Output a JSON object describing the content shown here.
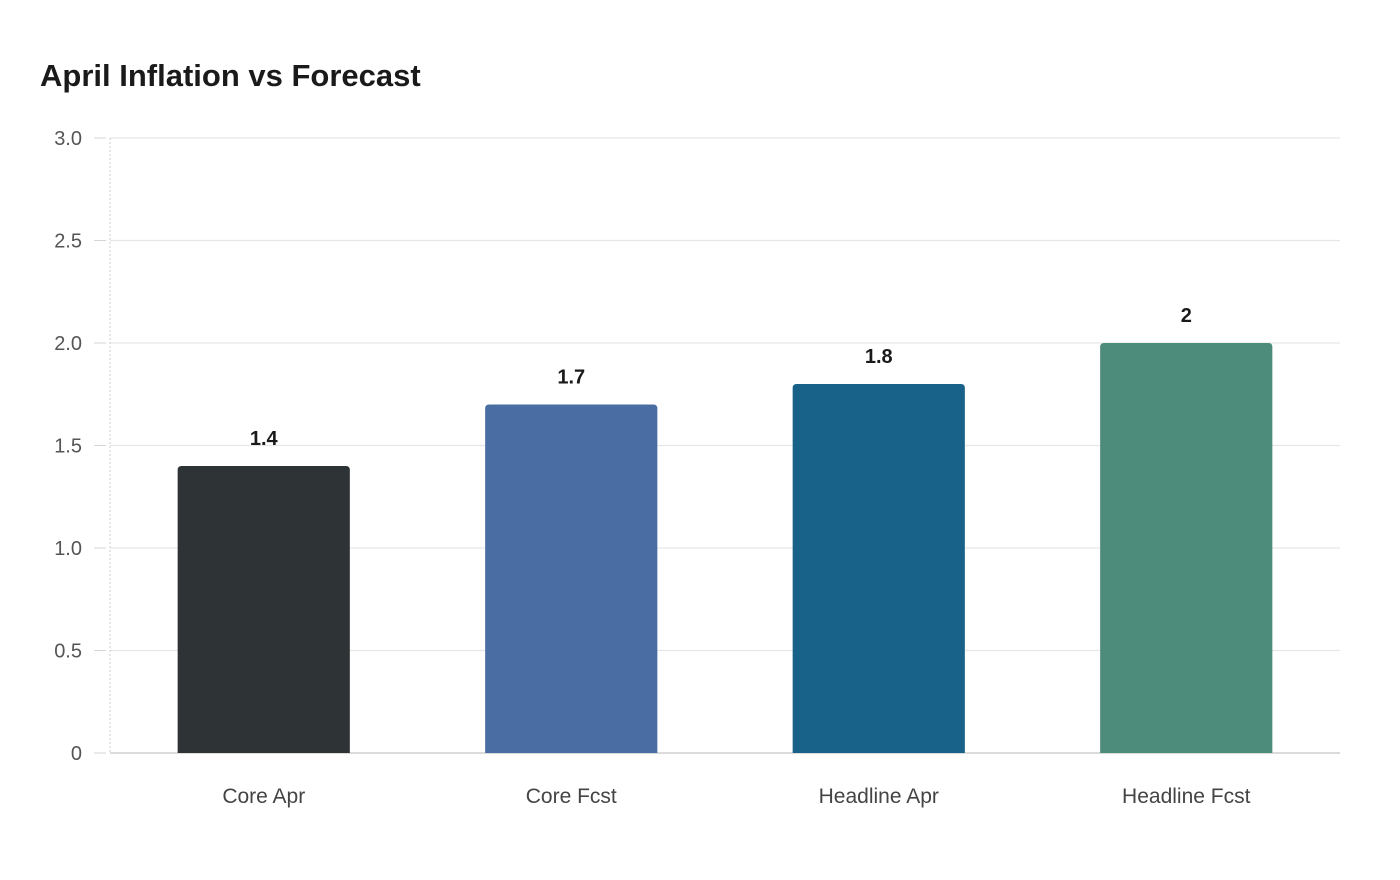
{
  "chart_data": {
    "type": "bar",
    "title": "April Inflation vs Forecast",
    "xlabel": "",
    "ylabel": "",
    "categories": [
      "Core Apr",
      "Core Fcst",
      "Headline Apr",
      "Headline Fcst"
    ],
    "values": [
      1.4,
      1.7,
      1.8,
      2
    ],
    "value_labels": [
      "1.4",
      "1.7",
      "1.8",
      "2"
    ],
    "colors": [
      "#2e3436",
      "#4a6ea3",
      "#186188",
      "#4d8c7a"
    ],
    "ylim": [
      0,
      3
    ],
    "yticks": [
      0,
      0.5,
      1,
      1.5,
      2,
      2.5,
      3
    ],
    "ytick_labels": [
      "0",
      "0.5",
      "1.0",
      "1.5",
      "2.0",
      "2.5",
      "3.0"
    ],
    "grid": true,
    "legend": "none"
  }
}
